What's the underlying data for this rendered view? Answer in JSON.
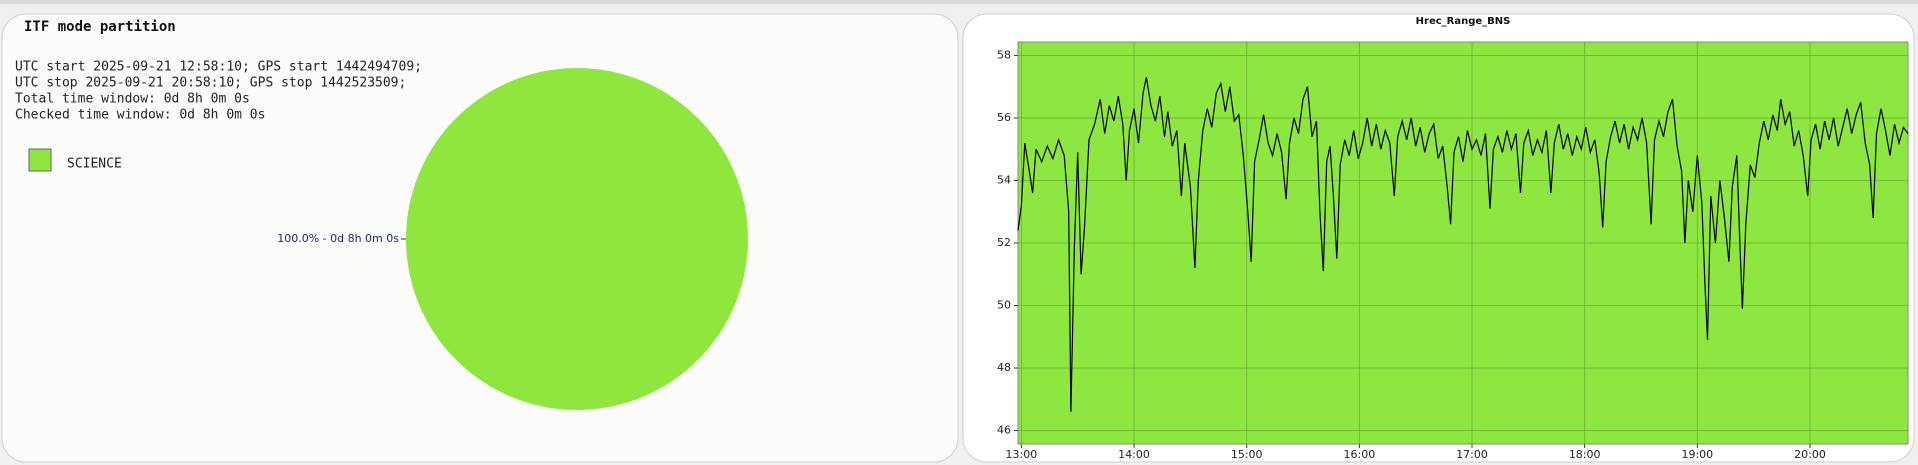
{
  "chart_data": [
    {
      "type": "pie",
      "title": "ITF mode partition",
      "annotations": [
        "UTC start 2025-09-21 12:58:10; GPS start 1442494709;",
        "UTC stop 2025-09-21 20:58:10; GPS stop 1442523509;",
        "Total time window: 0d 8h 0m 0s",
        "Checked time window: 0d 8h 0m 0s"
      ],
      "categories": [
        "SCIENCE"
      ],
      "values": [
        100
      ],
      "value_labels": [
        "100.0% - 0d 8h 0m 0s"
      ],
      "colors": [
        "#8ee63e"
      ]
    },
    {
      "type": "line",
      "title": "Hrec_Range_BNS",
      "color": "#000000",
      "plot_color": "#8ee640",
      "grid": true,
      "xlim": [
        12.97,
        20.87
      ],
      "ylim": [
        45.57,
        58.43
      ],
      "xticks": [
        {
          "value": 13,
          "label": "13:00"
        },
        {
          "value": 14,
          "label": "14:00"
        },
        {
          "value": 15,
          "label": "15:00"
        },
        {
          "value": 16,
          "label": "16:00"
        },
        {
          "value": 17,
          "label": "17:00"
        },
        {
          "value": 18,
          "label": "18:00"
        },
        {
          "value": 19,
          "label": "19:00"
        },
        {
          "value": 20,
          "label": "20:00"
        }
      ],
      "yticks": [
        46,
        48,
        50,
        52,
        54,
        56,
        58
      ],
      "x": [
        12.97,
        13.0,
        13.03,
        13.07,
        13.1,
        13.13,
        13.18,
        13.23,
        13.28,
        13.33,
        13.38,
        13.42,
        13.44,
        13.47,
        13.5,
        13.53,
        13.56,
        13.6,
        13.65,
        13.7,
        13.74,
        13.78,
        13.82,
        13.86,
        13.9,
        13.93,
        13.96,
        14.0,
        14.04,
        14.08,
        14.11,
        14.15,
        14.19,
        14.23,
        14.27,
        14.3,
        14.34,
        14.38,
        14.42,
        14.45,
        14.5,
        14.54,
        14.57,
        14.61,
        14.65,
        14.69,
        14.73,
        14.77,
        14.81,
        14.85,
        14.89,
        14.93,
        14.97,
        15.01,
        15.04,
        15.07,
        15.11,
        15.15,
        15.19,
        15.23,
        15.27,
        15.31,
        15.35,
        15.38,
        15.42,
        15.46,
        15.5,
        15.54,
        15.58,
        15.62,
        15.65,
        15.68,
        15.71,
        15.74,
        15.77,
        15.8,
        15.83,
        15.87,
        15.91,
        15.95,
        15.99,
        16.03,
        16.07,
        16.11,
        16.15,
        16.19,
        16.23,
        16.27,
        16.31,
        16.34,
        16.38,
        16.42,
        16.46,
        16.5,
        16.54,
        16.58,
        16.62,
        16.66,
        16.7,
        16.74,
        16.78,
        16.81,
        16.84,
        16.88,
        16.92,
        16.96,
        17.0,
        17.04,
        17.08,
        17.12,
        17.16,
        17.19,
        17.23,
        17.27,
        17.31,
        17.35,
        17.39,
        17.43,
        17.46,
        17.5,
        17.54,
        17.58,
        17.62,
        17.66,
        17.7,
        17.73,
        17.77,
        17.81,
        17.85,
        17.89,
        17.93,
        17.97,
        18.01,
        18.05,
        18.09,
        18.13,
        18.16,
        18.19,
        18.23,
        18.27,
        18.31,
        18.35,
        18.39,
        18.43,
        18.47,
        18.51,
        18.55,
        18.59,
        18.62,
        18.66,
        18.7,
        18.74,
        18.78,
        18.82,
        18.86,
        18.89,
        18.92,
        18.96,
        19.0,
        19.04,
        19.07,
        19.09,
        19.12,
        19.16,
        19.2,
        19.24,
        19.28,
        19.31,
        19.35,
        19.38,
        19.4,
        19.43,
        19.47,
        19.51,
        19.55,
        19.59,
        19.63,
        19.67,
        19.71,
        19.74,
        19.78,
        19.82,
        19.86,
        19.9,
        19.94,
        19.98,
        20.01,
        20.05,
        20.09,
        20.13,
        20.17,
        20.21,
        20.25,
        20.29,
        20.33,
        20.37,
        20.41,
        20.45,
        20.49,
        20.53,
        20.56,
        20.59,
        20.63,
        20.67,
        20.71,
        20.75,
        20.79,
        20.83,
        20.87
      ],
      "values": [
        52.4,
        53.2,
        55.2,
        54.3,
        53.6,
        55.0,
        54.6,
        55.1,
        54.7,
        55.3,
        54.8,
        53.0,
        46.6,
        51.8,
        54.9,
        51.0,
        52.5,
        55.3,
        55.8,
        56.6,
        55.5,
        56.4,
        55.9,
        56.7,
        55.8,
        54.0,
        55.6,
        56.3,
        55.2,
        56.8,
        57.3,
        56.4,
        55.9,
        56.7,
        55.4,
        56.2,
        55.1,
        55.6,
        53.5,
        55.2,
        53.8,
        51.2,
        54.0,
        55.6,
        56.3,
        55.7,
        56.8,
        57.1,
        56.2,
        57.0,
        55.9,
        56.1,
        54.8,
        53.0,
        51.4,
        54.6,
        55.3,
        56.1,
        55.2,
        54.8,
        55.5,
        54.9,
        53.4,
        55.2,
        56.0,
        55.5,
        56.6,
        57.0,
        55.4,
        55.9,
        53.0,
        51.1,
        54.6,
        55.1,
        53.5,
        51.5,
        54.5,
        55.3,
        54.8,
        55.6,
        54.7,
        55.2,
        56.0,
        55.1,
        55.8,
        55.0,
        55.6,
        55.2,
        53.5,
        55.4,
        55.9,
        55.3,
        56.0,
        55.1,
        55.7,
        54.9,
        55.5,
        55.8,
        54.7,
        55.1,
        53.8,
        52.6,
        54.9,
        55.4,
        54.6,
        55.6,
        55.0,
        55.3,
        54.8,
        55.5,
        53.1,
        55.0,
        55.4,
        54.9,
        55.6,
        55.0,
        55.5,
        53.6,
        55.2,
        55.6,
        54.8,
        55.3,
        54.9,
        55.6,
        53.6,
        55.2,
        55.8,
        55.0,
        55.5,
        54.8,
        55.4,
        55.0,
        55.7,
        54.9,
        55.3,
        54.2,
        52.5,
        54.6,
        55.4,
        55.9,
        55.2,
        55.8,
        55.0,
        55.7,
        55.3,
        56.0,
        55.2,
        52.6,
        55.3,
        55.9,
        55.4,
        56.2,
        56.6,
        55.1,
        54.3,
        52.0,
        54.0,
        53.0,
        54.8,
        53.3,
        50.5,
        48.9,
        53.5,
        52.0,
        54.0,
        52.8,
        51.4,
        53.8,
        54.8,
        51.8,
        49.9,
        52.6,
        54.5,
        54.1,
        55.2,
        55.9,
        55.3,
        56.1,
        55.6,
        56.6,
        55.8,
        56.2,
        55.1,
        55.6,
        54.8,
        53.5,
        55.3,
        55.8,
        55.0,
        55.9,
        55.3,
        56.0,
        55.1,
        55.7,
        56.3,
        55.5,
        56.1,
        56.5,
        55.2,
        54.5,
        52.8,
        55.5,
        56.3,
        55.6,
        54.8,
        55.8,
        55.2,
        55.7,
        55.5
      ]
    }
  ]
}
